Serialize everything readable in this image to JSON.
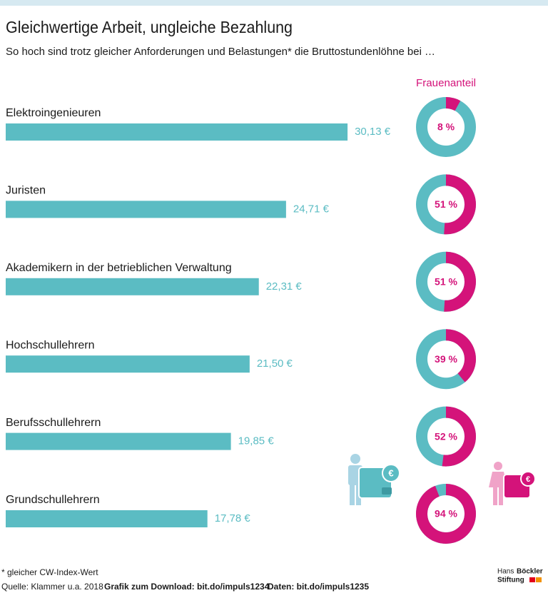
{
  "chart_data": [
    {
      "type": "bar",
      "title": "Gleichwertige Arbeit, ungleiche Bezahlung",
      "subtitle": "So hoch sind trotz gleicher Anforderungen und Belastungen* die Bruttostundenlöhne bei …",
      "categories": [
        "Elektroingenieuren",
        "Juristen",
        "Akademikern in der betrieblichen Verwaltung",
        "Hochschullehrern",
        "Berufsschullehrern",
        "Grundschullehrern"
      ],
      "values": [
        30.13,
        24.71,
        22.31,
        21.5,
        19.85,
        17.78
      ],
      "value_labels": [
        "30,13 €",
        "24,71 €",
        "22,31 €",
        "21,50 €",
        "19,85 €",
        "17,78 €"
      ],
      "color": "#5bbcc3"
    },
    {
      "type": "donut",
      "title": "Frauenanteil",
      "values": [
        8,
        51,
        51,
        39,
        52,
        94
      ],
      "value_labels": [
        "8 %",
        "51 %",
        "51 %",
        "39 %",
        "52 %",
        "94 %"
      ],
      "color": "#d4137a",
      "rest_color": "#5bbcc3"
    }
  ],
  "footer": {
    "footnote": "* gleicher CW-Index-Wert",
    "source": "Quelle: Klammer u.a. 2018",
    "download": "Grafik zum Download: bit.do/impuls1234",
    "data_link": "Daten: bit.do/impuls1235"
  },
  "logo": {
    "line1": "Hans",
    "line2": "Böckler",
    "line3": "Stiftung"
  }
}
